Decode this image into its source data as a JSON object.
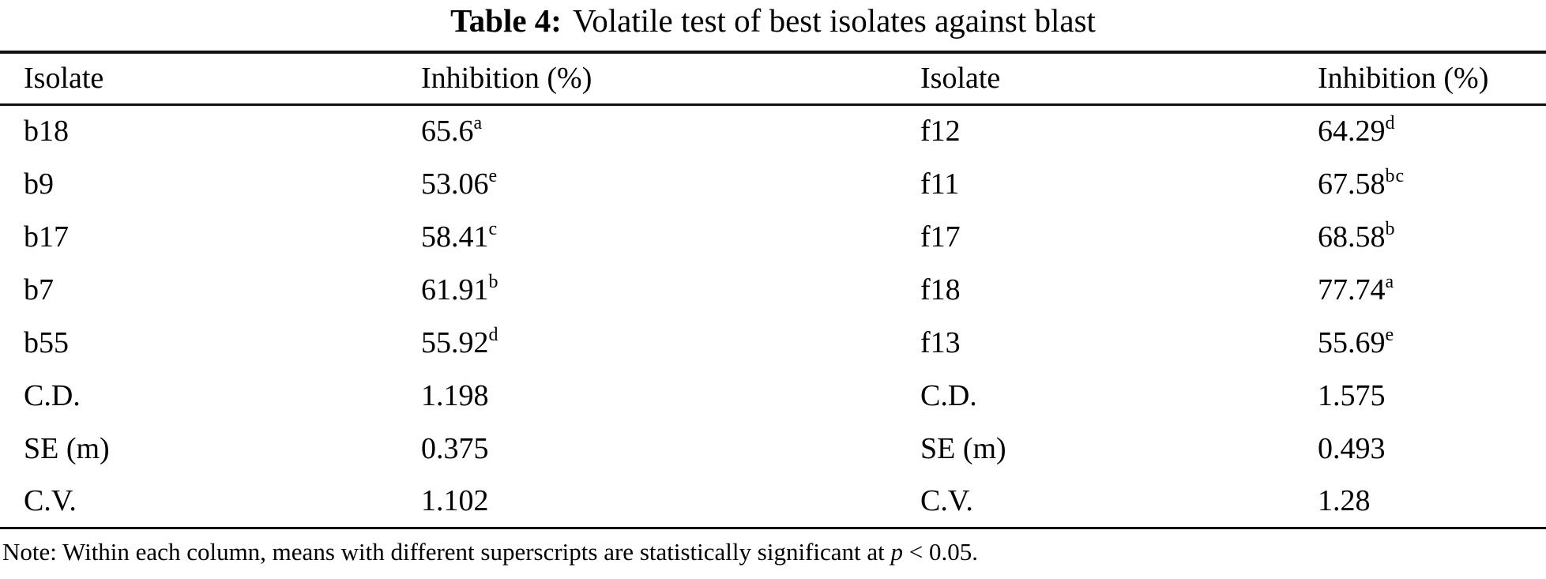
{
  "title": {
    "label": "Table 4:",
    "text": "Volatile test of best isolates against blast"
  },
  "table": {
    "headers": [
      "Isolate",
      "Inhibition (%)",
      "Isolate",
      "Inhibition (%)"
    ],
    "rows": [
      {
        "isolate_left": "b18",
        "value_left": "65.6",
        "sup_left": "a",
        "isolate_right": "f12",
        "value_right": "64.29",
        "sup_right": "d"
      },
      {
        "isolate_left": "b9",
        "value_left": "53.06",
        "sup_left": "e",
        "isolate_right": "f11",
        "value_right": "67.58",
        "sup_right": "bc"
      },
      {
        "isolate_left": "b17",
        "value_left": "58.41",
        "sup_left": "c",
        "isolate_right": "f17",
        "value_right": "68.58",
        "sup_right": "b"
      },
      {
        "isolate_left": "b7",
        "value_left": "61.91",
        "sup_left": "b",
        "isolate_right": "f18",
        "value_right": "77.74",
        "sup_right": "a"
      },
      {
        "isolate_left": "b55",
        "value_left": "55.92",
        "sup_left": "d",
        "isolate_right": "f13",
        "value_right": "55.69",
        "sup_right": "e"
      },
      {
        "isolate_left": "C.D.",
        "value_left": "1.198",
        "sup_left": "",
        "isolate_right": "C.D.",
        "value_right": "1.575",
        "sup_right": ""
      },
      {
        "isolate_left": "SE (m)",
        "value_left": "0.375",
        "sup_left": "",
        "isolate_right": "SE (m)",
        "value_right": "0.493",
        "sup_right": ""
      },
      {
        "isolate_left": "C.V.",
        "value_left": "1.102",
        "sup_left": "",
        "isolate_right": "C.V.",
        "value_right": "1.28",
        "sup_right": ""
      }
    ]
  },
  "note": {
    "prefix": "Note: Within each column, means with different superscripts are statistically significant at ",
    "p_symbol": "p",
    "suffix": " < 0.05."
  }
}
